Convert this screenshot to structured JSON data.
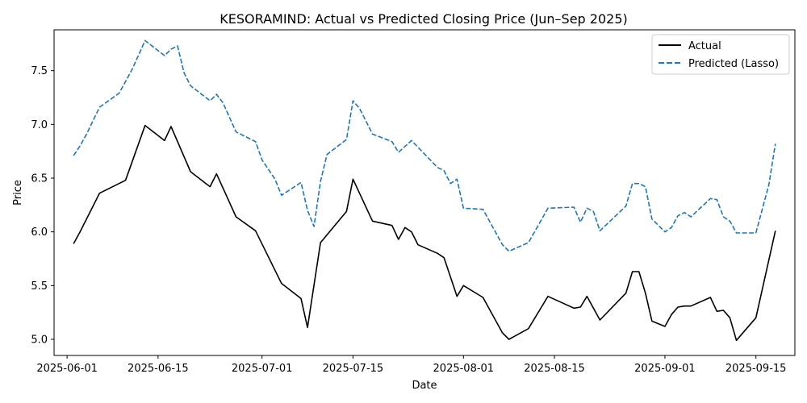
{
  "chart_data": {
    "type": "line",
    "title": "KESORAMIND: Actual vs Predicted Closing Price (Jun–Sep 2025)",
    "xlabel": "Date",
    "ylabel": "Price",
    "x_ticks": [
      "2025-06-01",
      "2025-06-15",
      "2025-07-01",
      "2025-07-15",
      "2025-08-01",
      "2025-08-15",
      "2025-09-01",
      "2025-09-15"
    ],
    "y_ticks": [
      "5.0",
      "5.5",
      "6.0",
      "6.5",
      "7.0",
      "7.5"
    ],
    "x_range": [
      "2025-05-30",
      "2025-09-21"
    ],
    "ylim": [
      4.85,
      7.88
    ],
    "legend": {
      "location": "top-right"
    },
    "series": [
      {
        "name": "Actual",
        "color": "#000000",
        "style": "solid",
        "points": [
          [
            "2025-06-02",
            5.89
          ],
          [
            "2025-06-03",
            6.0
          ],
          [
            "2025-06-06",
            6.36
          ],
          [
            "2025-06-10",
            6.48
          ],
          [
            "2025-06-13",
            6.99
          ],
          [
            "2025-06-16",
            6.85
          ],
          [
            "2025-06-17",
            6.98
          ],
          [
            "2025-06-20",
            6.56
          ],
          [
            "2025-06-23",
            6.42
          ],
          [
            "2025-06-24",
            6.54
          ],
          [
            "2025-06-27",
            6.14
          ],
          [
            "2025-06-30",
            6.01
          ],
          [
            "2025-07-04",
            5.52
          ],
          [
            "2025-07-07",
            5.38
          ],
          [
            "2025-07-08",
            5.11
          ],
          [
            "2025-07-10",
            5.9
          ],
          [
            "2025-07-14",
            6.19
          ],
          [
            "2025-07-15",
            6.49
          ],
          [
            "2025-07-18",
            6.1
          ],
          [
            "2025-07-21",
            6.06
          ],
          [
            "2025-07-22",
            5.93
          ],
          [
            "2025-07-23",
            6.04
          ],
          [
            "2025-07-24",
            6.0
          ],
          [
            "2025-07-25",
            5.88
          ],
          [
            "2025-07-28",
            5.8
          ],
          [
            "2025-07-29",
            5.76
          ],
          [
            "2025-07-31",
            5.4
          ],
          [
            "2025-08-01",
            5.5
          ],
          [
            "2025-08-04",
            5.39
          ],
          [
            "2025-08-07",
            5.06
          ],
          [
            "2025-08-08",
            5.0
          ],
          [
            "2025-08-11",
            5.1
          ],
          [
            "2025-08-14",
            5.4
          ],
          [
            "2025-08-18",
            5.29
          ],
          [
            "2025-08-19",
            5.3
          ],
          [
            "2025-08-20",
            5.4
          ],
          [
            "2025-08-22",
            5.18
          ],
          [
            "2025-08-26",
            5.43
          ],
          [
            "2025-08-27",
            5.63
          ],
          [
            "2025-08-28",
            5.63
          ],
          [
            "2025-08-29",
            5.43
          ],
          [
            "2025-08-30",
            5.17
          ],
          [
            "2025-09-01",
            5.12
          ],
          [
            "2025-09-02",
            5.23
          ],
          [
            "2025-09-03",
            5.3
          ],
          [
            "2025-09-04",
            5.31
          ],
          [
            "2025-09-05",
            5.31
          ],
          [
            "2025-09-08",
            5.39
          ],
          [
            "2025-09-09",
            5.26
          ],
          [
            "2025-09-10",
            5.27
          ],
          [
            "2025-09-11",
            5.2
          ],
          [
            "2025-09-12",
            4.99
          ],
          [
            "2025-09-15",
            5.2
          ],
          [
            "2025-09-18",
            6.01
          ]
        ]
      },
      {
        "name": "Predicted (Lasso)",
        "color": "#1f77b4",
        "style": "dashed",
        "points": [
          [
            "2025-06-02",
            6.71
          ],
          [
            "2025-06-03",
            6.8
          ],
          [
            "2025-06-04",
            6.91
          ],
          [
            "2025-06-06",
            7.16
          ],
          [
            "2025-06-09",
            7.29
          ],
          [
            "2025-06-11",
            7.51
          ],
          [
            "2025-06-13",
            7.78
          ],
          [
            "2025-06-16",
            7.64
          ],
          [
            "2025-06-17",
            7.7
          ],
          [
            "2025-06-18",
            7.73
          ],
          [
            "2025-06-19",
            7.48
          ],
          [
            "2025-06-20",
            7.36
          ],
          [
            "2025-06-23",
            7.22
          ],
          [
            "2025-06-24",
            7.28
          ],
          [
            "2025-06-25",
            7.2
          ],
          [
            "2025-06-27",
            6.93
          ],
          [
            "2025-06-30",
            6.84
          ],
          [
            "2025-07-01",
            6.67
          ],
          [
            "2025-07-02",
            6.58
          ],
          [
            "2025-07-03",
            6.49
          ],
          [
            "2025-07-04",
            6.34
          ],
          [
            "2025-07-07",
            6.46
          ],
          [
            "2025-07-08",
            6.2
          ],
          [
            "2025-07-09",
            6.05
          ],
          [
            "2025-07-10",
            6.47
          ],
          [
            "2025-07-11",
            6.72
          ],
          [
            "2025-07-14",
            6.86
          ],
          [
            "2025-07-15",
            7.22
          ],
          [
            "2025-07-16",
            7.15
          ],
          [
            "2025-07-18",
            6.91
          ],
          [
            "2025-07-21",
            6.84
          ],
          [
            "2025-07-22",
            6.74
          ],
          [
            "2025-07-24",
            6.85
          ],
          [
            "2025-07-28",
            6.6
          ],
          [
            "2025-07-29",
            6.57
          ],
          [
            "2025-07-30",
            6.45
          ],
          [
            "2025-07-31",
            6.49
          ],
          [
            "2025-08-01",
            6.22
          ],
          [
            "2025-08-04",
            6.21
          ],
          [
            "2025-08-07",
            5.88
          ],
          [
            "2025-08-08",
            5.82
          ],
          [
            "2025-08-11",
            5.9
          ],
          [
            "2025-08-14",
            6.22
          ],
          [
            "2025-08-18",
            6.23
          ],
          [
            "2025-08-19",
            6.09
          ],
          [
            "2025-08-20",
            6.22
          ],
          [
            "2025-08-21",
            6.19
          ],
          [
            "2025-08-22",
            6.01
          ],
          [
            "2025-08-26",
            6.24
          ],
          [
            "2025-08-27",
            6.45
          ],
          [
            "2025-08-28",
            6.45
          ],
          [
            "2025-08-29",
            6.42
          ],
          [
            "2025-08-30",
            6.12
          ],
          [
            "2025-09-01",
            6.0
          ],
          [
            "2025-09-02",
            6.04
          ],
          [
            "2025-09-03",
            6.15
          ],
          [
            "2025-09-04",
            6.18
          ],
          [
            "2025-09-05",
            6.14
          ],
          [
            "2025-09-08",
            6.31
          ],
          [
            "2025-09-09",
            6.3
          ],
          [
            "2025-09-10",
            6.14
          ],
          [
            "2025-09-11",
            6.1
          ],
          [
            "2025-09-12",
            5.99
          ],
          [
            "2025-09-15",
            5.99
          ],
          [
            "2025-09-17",
            6.44
          ],
          [
            "2025-09-18",
            6.82
          ]
        ]
      }
    ]
  }
}
